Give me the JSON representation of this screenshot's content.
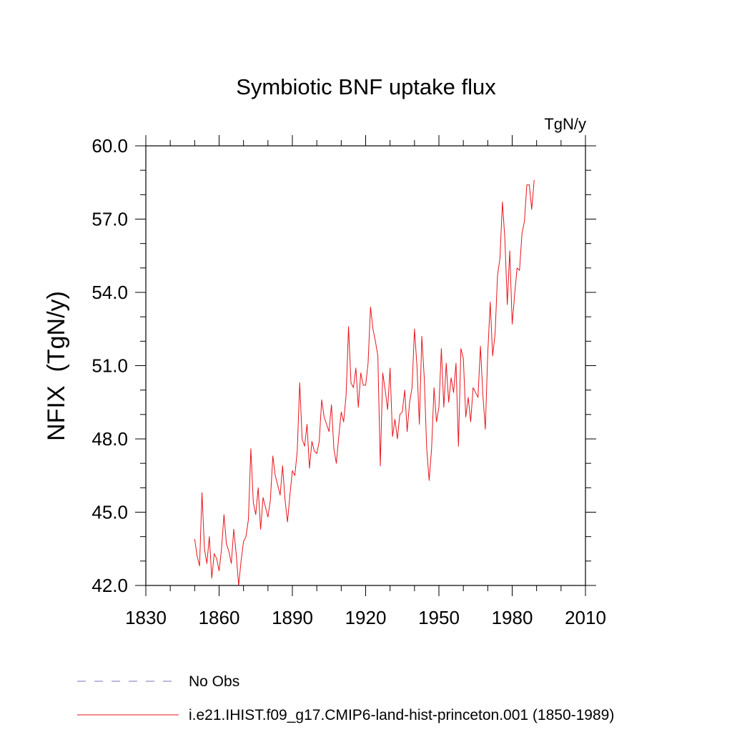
{
  "chart_data": {
    "type": "line",
    "title": "Symbiotic BNF uptake flux",
    "units": "TgN/y",
    "xlabel": "",
    "ylabel": "NFIX  (TgN/y)",
    "xlim": [
      1830,
      2010
    ],
    "ylim": [
      42.0,
      60.0
    ],
    "xticks": [
      "1830",
      "1860",
      "1890",
      "1920",
      "1950",
      "1980",
      "2010"
    ],
    "yticks": [
      "42.0",
      "45.0",
      "48.0",
      "51.0",
      "54.0",
      "57.0",
      "60.0"
    ],
    "grid": false,
    "legend_position": "bottom",
    "legend": [
      {
        "label": "No Obs",
        "color": "#7b6fc0",
        "style": "dashed"
      },
      {
        "label": "i.e21.IHIST.f09_g17.CMIP6-land-hist-princeton.001 (1850-1989)",
        "color": "#e8141c",
        "style": "solid"
      }
    ],
    "series": [
      {
        "name": "i.e21.IHIST.f09_g17.CMIP6-land-hist-princeton.001 (1850-1989)",
        "color": "#e8141c",
        "x_start": 1850,
        "x_step": 1,
        "values": [
          43.9,
          43.2,
          42.8,
          45.8,
          43.5,
          42.9,
          44.0,
          42.3,
          43.3,
          43.1,
          42.6,
          43.5,
          44.9,
          43.7,
          43.4,
          42.9,
          44.3,
          43.3,
          42.0,
          43.0,
          43.8,
          44.0,
          44.7,
          47.6,
          45.4,
          44.9,
          46.0,
          44.3,
          45.6,
          45.2,
          44.8,
          45.5,
          47.3,
          46.5,
          46.1,
          45.7,
          46.9,
          45.5,
          44.6,
          45.7,
          46.7,
          46.5,
          47.5,
          50.3,
          48.0,
          47.7,
          48.6,
          46.8,
          47.9,
          47.5,
          47.4,
          47.9,
          49.6,
          48.9,
          48.6,
          48.3,
          49.4,
          47.6,
          47.0,
          48.1,
          49.1,
          48.7,
          49.8,
          52.6,
          50.3,
          50.1,
          50.9,
          49.3,
          50.7,
          50.2,
          50.2,
          51.1,
          53.4,
          52.5,
          52.0,
          51.4,
          46.9,
          50.7,
          50.0,
          49.2,
          50.9,
          48.1,
          48.8,
          48.0,
          49.0,
          49.1,
          50.0,
          48.3,
          49.5,
          50.1,
          52.5,
          51.0,
          48.6,
          52.2,
          50.5,
          47.6,
          46.3,
          47.6,
          50.1,
          48.7,
          49.3,
          51.7,
          49.3,
          51.1,
          49.5,
          50.5,
          49.9,
          51.1,
          47.7,
          51.7,
          51.3,
          48.9,
          49.7,
          48.7,
          50.1,
          49.9,
          49.7,
          51.8,
          49.8,
          48.4,
          51.5,
          53.6,
          51.4,
          52.3,
          54.7,
          55.4,
          57.7,
          56.2,
          53.5,
          55.7,
          52.7,
          53.9,
          55.0,
          54.9,
          56.4,
          56.9,
          58.4,
          58.4,
          57.4,
          58.6
        ]
      }
    ]
  }
}
